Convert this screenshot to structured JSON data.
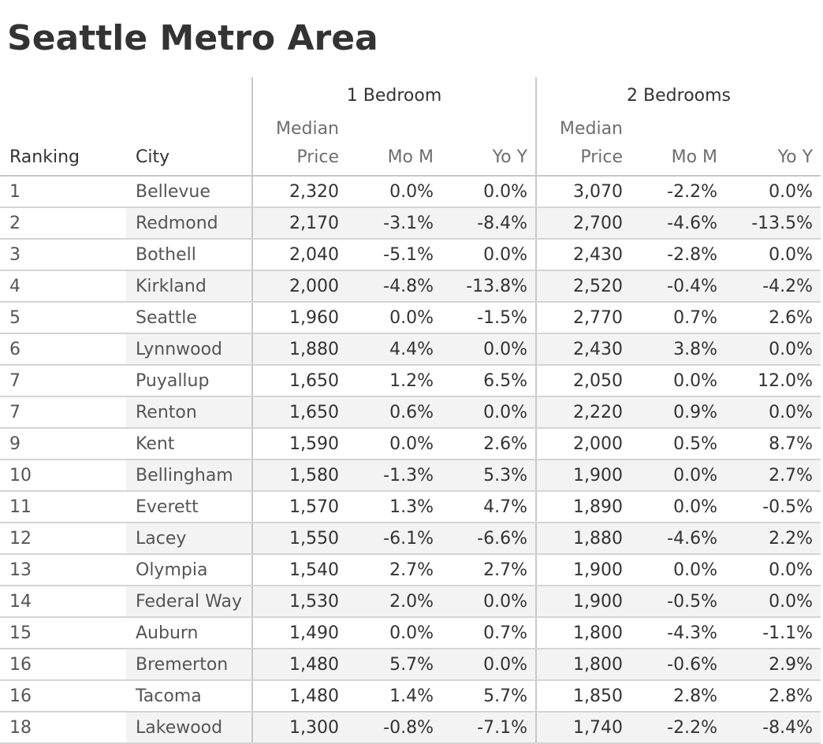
{
  "title": "Seattle Metro Area",
  "groups": {
    "one_bedroom": "1 Bedroom",
    "two_bedrooms": "2 Bedrooms"
  },
  "headers": {
    "ranking": "Ranking",
    "city": "City",
    "median_line1": "Median",
    "median_line2": "Price",
    "mom": "Mo M",
    "yoy": "Yo Y"
  },
  "chart_data": {
    "type": "table",
    "title": "Seattle Metro Area",
    "columns": [
      "Ranking",
      "City",
      "1 Bedroom Median Price",
      "1 Bedroom Mo M",
      "1 Bedroom Yo Y",
      "2 Bedrooms Median Price",
      "2 Bedrooms Mo M",
      "2 Bedrooms Yo Y"
    ],
    "rows": [
      {
        "rank": "1",
        "city": "Bellevue",
        "b1_price": "2,320",
        "b1_mom": "0.0%",
        "b1_yoy": "0.0%",
        "b2_price": "3,070",
        "b2_mom": "-2.2%",
        "b2_yoy": "0.0%"
      },
      {
        "rank": "2",
        "city": "Redmond",
        "b1_price": "2,170",
        "b1_mom": "-3.1%",
        "b1_yoy": "-8.4%",
        "b2_price": "2,700",
        "b2_mom": "-4.6%",
        "b2_yoy": "-13.5%"
      },
      {
        "rank": "3",
        "city": "Bothell",
        "b1_price": "2,040",
        "b1_mom": "-5.1%",
        "b1_yoy": "0.0%",
        "b2_price": "2,430",
        "b2_mom": "-2.8%",
        "b2_yoy": "0.0%"
      },
      {
        "rank": "4",
        "city": "Kirkland",
        "b1_price": "2,000",
        "b1_mom": "-4.8%",
        "b1_yoy": "-13.8%",
        "b2_price": "2,520",
        "b2_mom": "-0.4%",
        "b2_yoy": "-4.2%"
      },
      {
        "rank": "5",
        "city": "Seattle",
        "b1_price": "1,960",
        "b1_mom": "0.0%",
        "b1_yoy": "-1.5%",
        "b2_price": "2,770",
        "b2_mom": "0.7%",
        "b2_yoy": "2.6%"
      },
      {
        "rank": "6",
        "city": "Lynnwood",
        "b1_price": "1,880",
        "b1_mom": "4.4%",
        "b1_yoy": "0.0%",
        "b2_price": "2,430",
        "b2_mom": "3.8%",
        "b2_yoy": "0.0%"
      },
      {
        "rank": "7",
        "city": "Puyallup",
        "b1_price": "1,650",
        "b1_mom": "1.2%",
        "b1_yoy": "6.5%",
        "b2_price": "2,050",
        "b2_mom": "0.0%",
        "b2_yoy": "12.0%"
      },
      {
        "rank": "7",
        "city": "Renton",
        "b1_price": "1,650",
        "b1_mom": "0.6%",
        "b1_yoy": "0.0%",
        "b2_price": "2,220",
        "b2_mom": "0.9%",
        "b2_yoy": "0.0%"
      },
      {
        "rank": "9",
        "city": "Kent",
        "b1_price": "1,590",
        "b1_mom": "0.0%",
        "b1_yoy": "2.6%",
        "b2_price": "2,000",
        "b2_mom": "0.5%",
        "b2_yoy": "8.7%"
      },
      {
        "rank": "10",
        "city": "Bellingham",
        "b1_price": "1,580",
        "b1_mom": "-1.3%",
        "b1_yoy": "5.3%",
        "b2_price": "1,900",
        "b2_mom": "0.0%",
        "b2_yoy": "2.7%"
      },
      {
        "rank": "11",
        "city": "Everett",
        "b1_price": "1,570",
        "b1_mom": "1.3%",
        "b1_yoy": "4.7%",
        "b2_price": "1,890",
        "b2_mom": "0.0%",
        "b2_yoy": "-0.5%"
      },
      {
        "rank": "12",
        "city": "Lacey",
        "b1_price": "1,550",
        "b1_mom": "-6.1%",
        "b1_yoy": "-6.6%",
        "b2_price": "1,880",
        "b2_mom": "-4.6%",
        "b2_yoy": "2.2%"
      },
      {
        "rank": "13",
        "city": "Olympia",
        "b1_price": "1,540",
        "b1_mom": "2.7%",
        "b1_yoy": "2.7%",
        "b2_price": "1,900",
        "b2_mom": "0.0%",
        "b2_yoy": "0.0%"
      },
      {
        "rank": "14",
        "city": "Federal Way",
        "b1_price": "1,530",
        "b1_mom": "2.0%",
        "b1_yoy": "0.0%",
        "b2_price": "1,900",
        "b2_mom": "-0.5%",
        "b2_yoy": "0.0%"
      },
      {
        "rank": "15",
        "city": "Auburn",
        "b1_price": "1,490",
        "b1_mom": "0.0%",
        "b1_yoy": "0.7%",
        "b2_price": "1,800",
        "b2_mom": "-4.3%",
        "b2_yoy": "-1.1%"
      },
      {
        "rank": "16",
        "city": "Bremerton",
        "b1_price": "1,480",
        "b1_mom": "5.7%",
        "b1_yoy": "0.0%",
        "b2_price": "1,800",
        "b2_mom": "-0.6%",
        "b2_yoy": "2.9%"
      },
      {
        "rank": "16",
        "city": "Tacoma",
        "b1_price": "1,480",
        "b1_mom": "1.4%",
        "b1_yoy": "5.7%",
        "b2_price": "1,850",
        "b2_mom": "2.8%",
        "b2_yoy": "2.8%"
      },
      {
        "rank": "18",
        "city": "Lakewood",
        "b1_price": "1,300",
        "b1_mom": "-0.8%",
        "b1_yoy": "-7.1%",
        "b2_price": "1,740",
        "b2_mom": "-2.2%",
        "b2_yoy": "-8.4%"
      }
    ]
  }
}
